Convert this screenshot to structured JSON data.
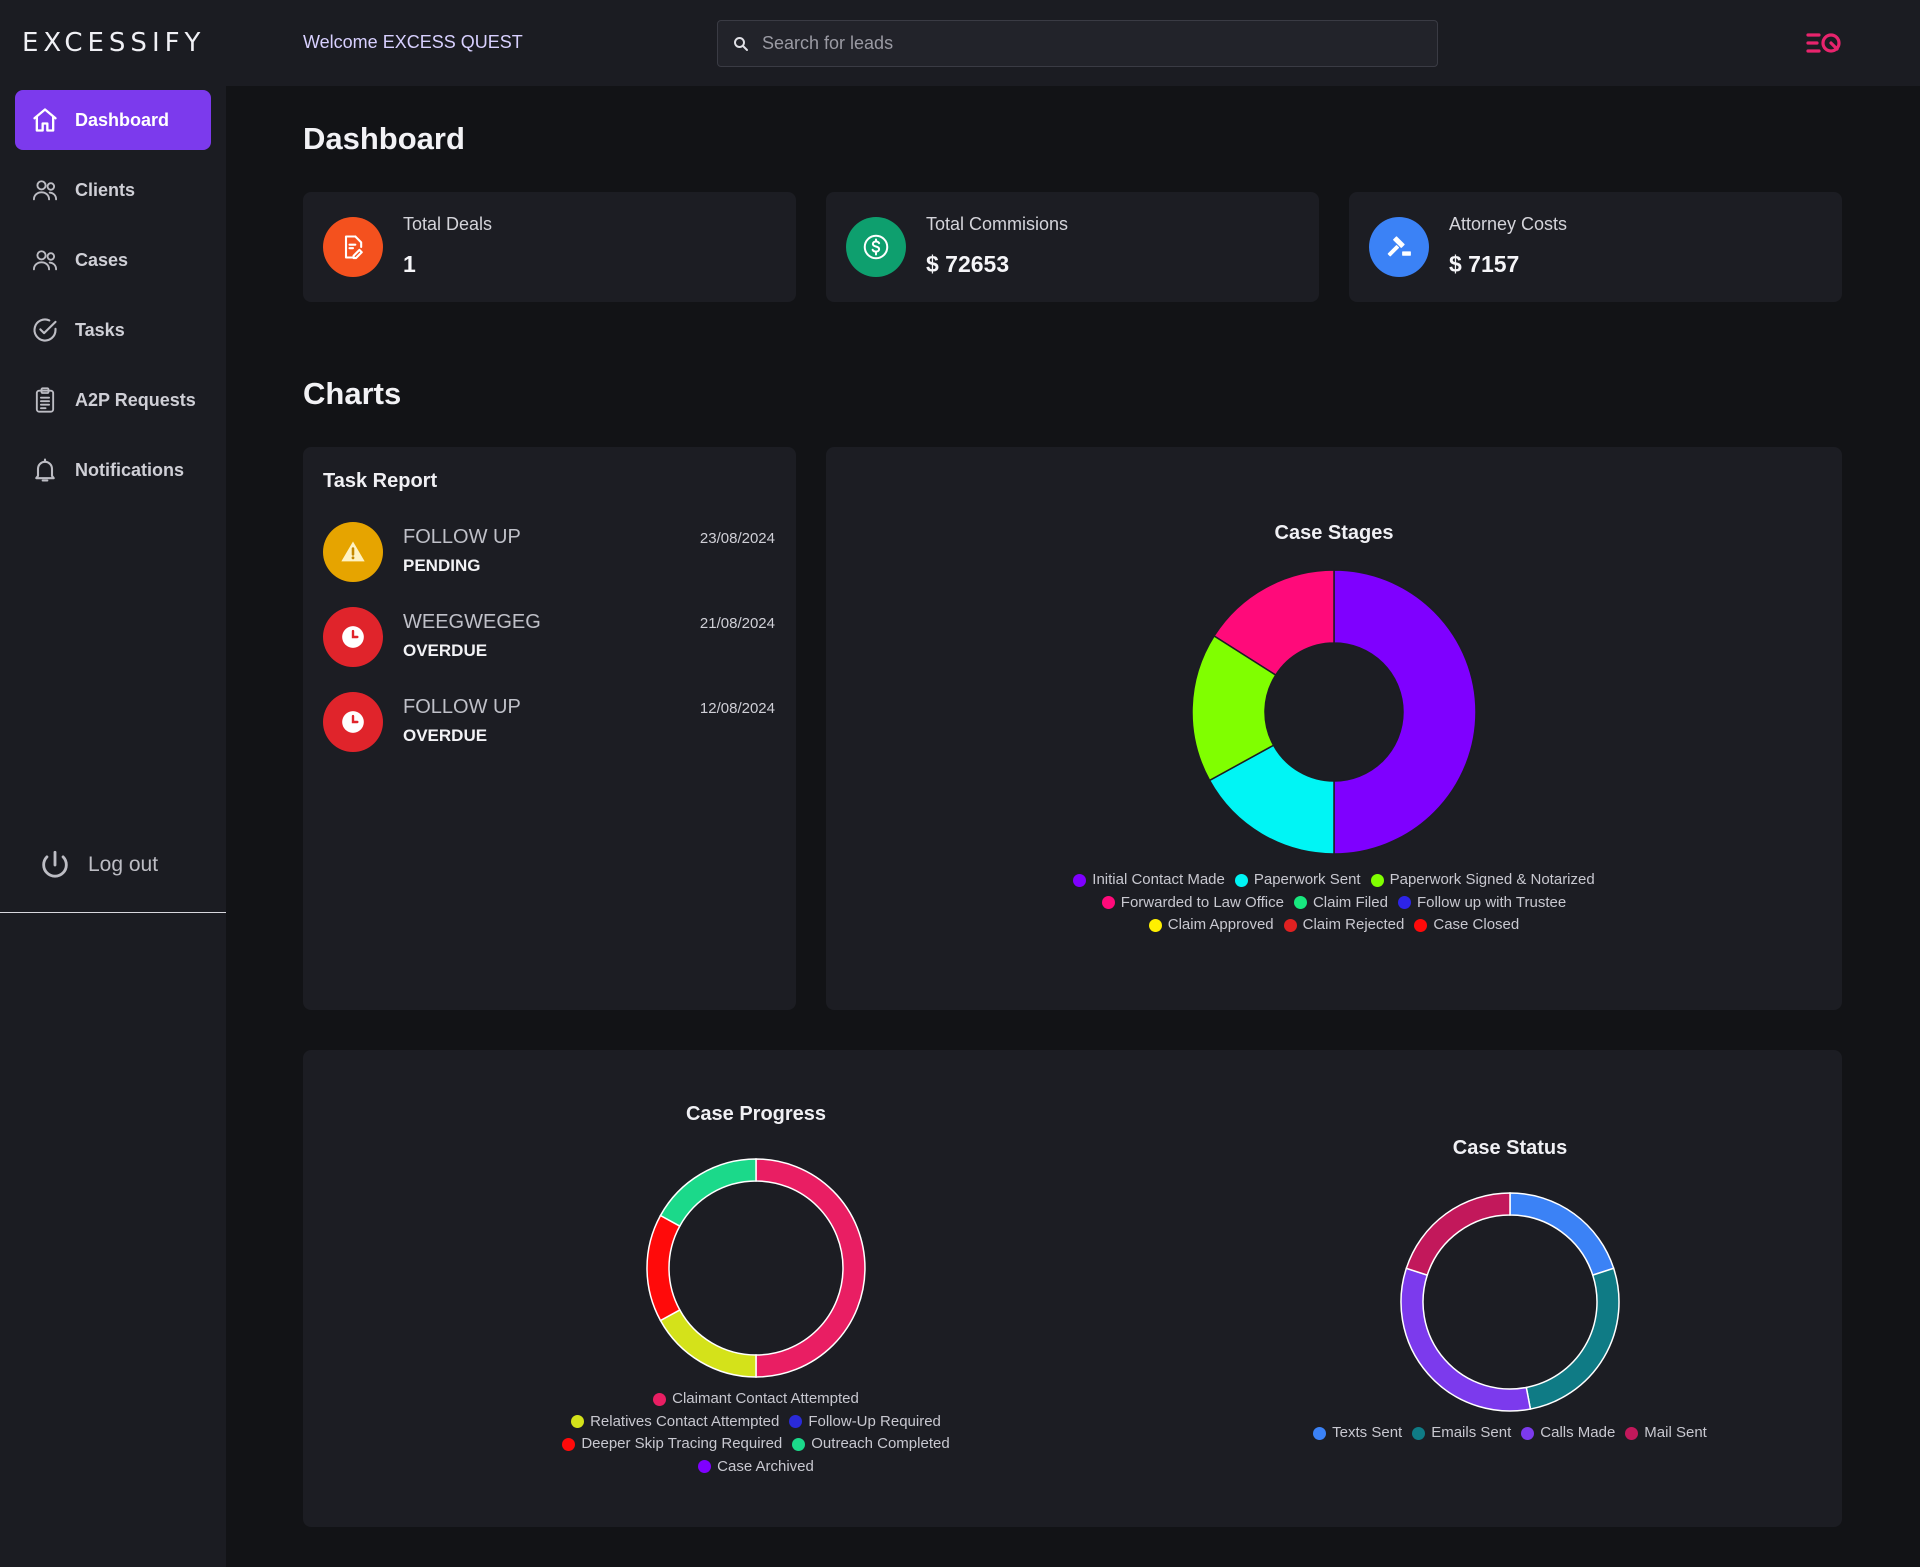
{
  "app": {
    "logo": "EXCESSIFY"
  },
  "sidebar": {
    "items": [
      {
        "label": "Dashboard",
        "icon": "home-icon",
        "active": true
      },
      {
        "label": "Clients",
        "icon": "users-icon",
        "active": false
      },
      {
        "label": "Cases",
        "icon": "users-icon",
        "active": false
      },
      {
        "label": "Tasks",
        "icon": "check-circle-icon",
        "active": false
      },
      {
        "label": "A2P Requests",
        "icon": "clipboard-icon",
        "active": false
      },
      {
        "label": "Notifications",
        "icon": "bell-icon",
        "active": false
      }
    ],
    "logout_label": "Log out"
  },
  "header": {
    "welcome": "Welcome EXCESS QUEST",
    "search_placeholder": "Search for leads"
  },
  "dashboard": {
    "title": "Dashboard",
    "stats": [
      {
        "label": "Total Deals",
        "value": "1",
        "color": "#f4511e",
        "icon": "document-edit-icon"
      },
      {
        "label": "Total Commisions",
        "value": "$ 72653",
        "color": "#0e9f6e",
        "icon": "dollar-icon"
      },
      {
        "label": "Attorney Costs",
        "value": "$ 7157",
        "color": "#3b82f6",
        "icon": "gavel-icon"
      }
    ]
  },
  "charts_section": {
    "title": "Charts"
  },
  "task_report": {
    "title": "Task Report",
    "tasks": [
      {
        "name": "FOLLOW UP",
        "status": "PENDING",
        "date": "23/08/2024",
        "icon": "warning-icon",
        "color": "#e6a400"
      },
      {
        "name": "WEEGWEGEG",
        "status": "OVERDUE",
        "date": "21/08/2024",
        "icon": "clock-icon",
        "color": "#e0242b"
      },
      {
        "name": "FOLLOW UP",
        "status": "OVERDUE",
        "date": "12/08/2024",
        "icon": "clock-icon",
        "color": "#e0242b"
      }
    ]
  },
  "chart_data": [
    {
      "type": "pie",
      "title": "Case Stages",
      "legend_position": "bottom",
      "series": [
        {
          "name": "Initial Contact Made",
          "value": 50,
          "color": "#7f00ff"
        },
        {
          "name": "Paperwork Sent",
          "value": 17,
          "color": "#00f5f5"
        },
        {
          "name": "Paperwork Signed & Notarized",
          "value": 17,
          "color": "#80ff00"
        },
        {
          "name": "Forwarded to Law Office",
          "value": 16,
          "color": "#ff0a7a"
        },
        {
          "name": "Claim Filed",
          "value": 0,
          "color": "#18e87f"
        },
        {
          "name": "Follow up with Trustee",
          "value": 0,
          "color": "#2d24e8"
        },
        {
          "name": "Claim Approved",
          "value": 0,
          "color": "#fff000"
        },
        {
          "name": "Claim Rejected",
          "value": 0,
          "color": "#e02121"
        },
        {
          "name": "Case Closed",
          "value": 0,
          "color": "#ff0a0a"
        }
      ]
    },
    {
      "type": "pie",
      "title": "Case Progress",
      "legend_position": "bottom",
      "series": [
        {
          "name": "Claimant Contact Attempted",
          "value": 50,
          "color": "#e91e63"
        },
        {
          "name": "Relatives Contact Attempted",
          "value": 17,
          "color": "#d4e21a"
        },
        {
          "name": "Follow-Up Required",
          "value": 0,
          "color": "#2a2ad8"
        },
        {
          "name": "Deeper Skip Tracing Required",
          "value": 16,
          "color": "#ff0a0a"
        },
        {
          "name": "Outreach Completed",
          "value": 17,
          "color": "#1bd98a"
        },
        {
          "name": "Case Archived",
          "value": 0,
          "color": "#7f00ff"
        }
      ]
    },
    {
      "type": "pie",
      "title": "Case Status",
      "legend_position": "bottom",
      "series": [
        {
          "name": "Texts Sent",
          "value": 20,
          "color": "#3b82f6"
        },
        {
          "name": "Emails Sent",
          "value": 27,
          "color": "#0f7b85"
        },
        {
          "name": "Calls Made",
          "value": 33,
          "color": "#7c3aed"
        },
        {
          "name": "Mail Sent",
          "value": 20,
          "color": "#c2185b"
        }
      ]
    }
  ]
}
